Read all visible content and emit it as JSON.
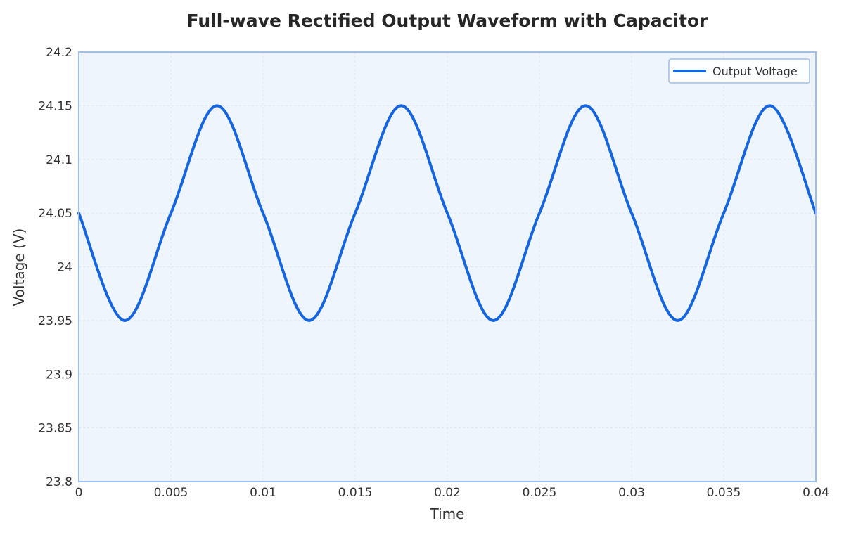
{
  "chart_data": {
    "type": "line",
    "title": "Full-wave Rectified Output Waveform with Capacitor",
    "xlabel": "Time",
    "ylabel": "Voltage (V)",
    "xlim": [
      0,
      0.04
    ],
    "ylim": [
      23.8,
      24.2
    ],
    "x_ticks": [
      "0",
      "0.005",
      "0.01",
      "0.015",
      "0.02",
      "0.025",
      "0.03",
      "0.035",
      "0.04"
    ],
    "y_ticks": [
      "23.8",
      "23.85",
      "23.9",
      "23.95",
      "24",
      "24.05",
      "24.1",
      "24.15",
      "24.2"
    ],
    "grid": true,
    "legend_position": "top-right",
    "series": [
      {
        "name": "Output Voltage",
        "color": "#1565e0",
        "x": [
          0,
          0.0025,
          0.005,
          0.0075,
          0.01,
          0.0125,
          0.015,
          0.0175,
          0.02,
          0.0225,
          0.025,
          0.0275,
          0.03,
          0.0325,
          0.035,
          0.0375,
          0.04
        ],
        "y": [
          24.05,
          23.95,
          24.05,
          24.15,
          24.05,
          23.95,
          24.05,
          24.15,
          24.05,
          23.95,
          24.05,
          24.15,
          24.05,
          23.95,
          24.05,
          24.15,
          24.05
        ]
      }
    ]
  },
  "colors": {
    "plot_background": "#eff5fd",
    "plot_border": "#9bbff0",
    "grid": "#dde6f2",
    "line": "#1565e0"
  }
}
